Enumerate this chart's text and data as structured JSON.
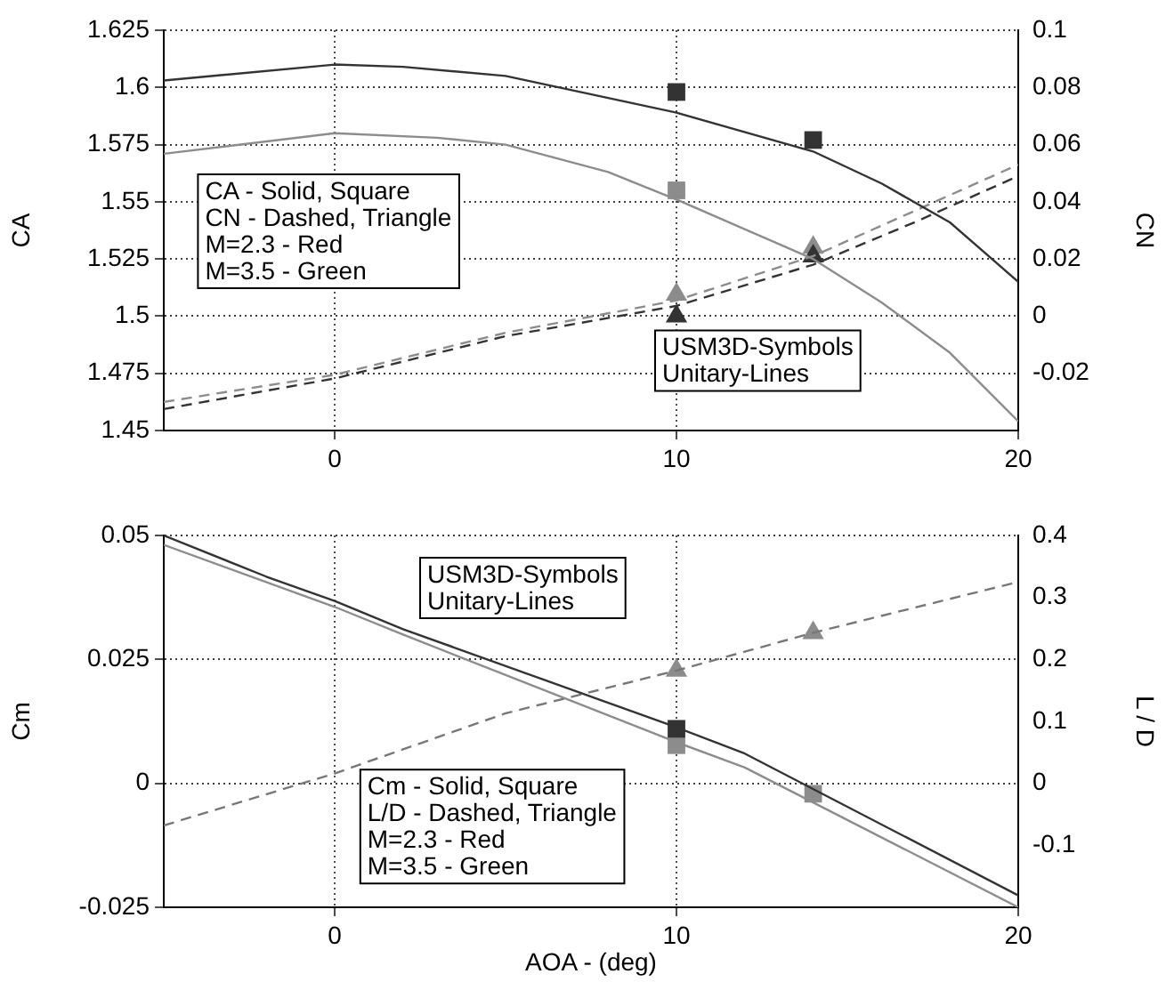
{
  "chart_data": [
    {
      "type": "line",
      "ylabel": "CA",
      "y2label": "CN",
      "xlim": [
        -5,
        20
      ],
      "xticks": [
        0,
        10,
        20
      ],
      "ylim": [
        1.45,
        1.625
      ],
      "yticks": [
        1.45,
        1.475,
        1.5,
        1.525,
        1.55,
        1.575,
        1.6,
        1.625
      ],
      "y2lim": [
        -0.04,
        0.1
      ],
      "y2ticks": [
        -0.02,
        0,
        0.02,
        0.04,
        0.06,
        0.08,
        0.1
      ],
      "grid": true,
      "annotations": [
        "CA - Solid, Square",
        "CN - Dashed, Triangle",
        "M=2.3 - Red",
        "M=3.5 - Green",
        "USM3D-Symbols",
        "Unitary-Lines"
      ],
      "series": [
        {
          "type": "line",
          "color": "#333333",
          "line_style": "solid",
          "marker": "none",
          "x": [
            -5,
            0,
            2,
            5,
            10,
            14,
            16,
            18,
            20
          ],
          "values": [
            1.603,
            1.61,
            1.609,
            1.605,
            1.589,
            1.572,
            1.558,
            1.541,
            1.515
          ]
        },
        {
          "type": "line",
          "color": "#8c8c8c",
          "line_style": "solid",
          "marker": "none",
          "x": [
            -5,
            0,
            3,
            5,
            8,
            10,
            14,
            16,
            18,
            20
          ],
          "values": [
            1.571,
            1.58,
            1.578,
            1.575,
            1.563,
            1.551,
            1.525,
            1.506,
            1.484,
            1.454
          ]
        },
        {
          "type": "line",
          "axis": "y2",
          "color": "#333333",
          "line_style": "dashed",
          "marker": "none",
          "x": [
            -5,
            0,
            5,
            10,
            14,
            17,
            20
          ],
          "values": [
            -0.0325,
            -0.0218,
            -0.007,
            0.0036,
            0.018,
            0.033,
            0.049
          ]
        },
        {
          "type": "line",
          "axis": "y2",
          "color": "#8c8c8c",
          "line_style": "dashed",
          "marker": "none",
          "x": [
            -5,
            0,
            5,
            10,
            14,
            17,
            20
          ],
          "values": [
            -0.03,
            -0.0205,
            -0.0058,
            0.0055,
            0.021,
            0.037,
            0.053
          ]
        },
        {
          "type": "scatter",
          "color": "#333333",
          "marker": "square",
          "x": [
            10,
            14
          ],
          "values": [
            1.598,
            1.577
          ]
        },
        {
          "type": "scatter",
          "color": "#8c8c8c",
          "marker": "square",
          "x": [
            10
          ],
          "values": [
            1.555
          ]
        },
        {
          "type": "scatter",
          "axis": "y2",
          "color": "#333333",
          "marker": "triangle",
          "x": [
            10,
            14
          ],
          "values": [
            0.0,
            0.021
          ]
        },
        {
          "type": "scatter",
          "axis": "y2",
          "color": "#8c8c8c",
          "marker": "triangle",
          "x": [
            10,
            14
          ],
          "values": [
            0.0076,
            0.024
          ]
        }
      ]
    },
    {
      "type": "line",
      "xlabel": "AOA - (deg)",
      "ylabel": "Cm",
      "y2label": "L / D",
      "xlim": [
        -5,
        20
      ],
      "xticks": [
        0,
        10,
        20
      ],
      "ylim": [
        -0.025,
        0.05
      ],
      "yticks": [
        -0.025,
        0,
        0.025,
        0.05
      ],
      "y2lim": [
        -0.2,
        0.4
      ],
      "y2ticks": [
        -0.1,
        0,
        0.1,
        0.2,
        0.3,
        0.4
      ],
      "grid": true,
      "annotations": [
        "USM3D-Symbols",
        "Unitary-Lines",
        "Cm - Solid, Square",
        "L/D - Dashed, Triangle",
        "M=2.3 - Red",
        "M=3.5 - Green"
      ],
      "series": [
        {
          "type": "line",
          "color": "#333333",
          "line_style": "solid",
          "marker": "none",
          "x": [
            -5,
            -2,
            0,
            2,
            10,
            12,
            20
          ],
          "values": [
            0.05,
            0.0417,
            0.0368,
            0.0311,
            0.0113,
            0.006,
            -0.0226
          ]
        },
        {
          "type": "line",
          "color": "#8c8c8c",
          "line_style": "solid",
          "marker": "none",
          "x": [
            -5,
            0,
            2,
            10,
            12,
            20
          ],
          "values": [
            0.0481,
            0.0356,
            0.03,
            0.0083,
            0.0032,
            -0.025
          ]
        },
        {
          "type": "line",
          "axis": "y2",
          "color": "#777777",
          "line_style": "dashed",
          "marker": "none",
          "x": [
            -5,
            0,
            5,
            10,
            14,
            20
          ],
          "values": [
            -0.068,
            0.016,
            0.113,
            0.182,
            0.243,
            0.325
          ]
        },
        {
          "type": "scatter",
          "color": "#333333",
          "marker": "square",
          "x": [
            10
          ],
          "values": [
            0.011
          ]
        },
        {
          "type": "scatter",
          "color": "#8c8c8c",
          "marker": "square",
          "x": [
            10,
            14
          ],
          "values": [
            0.0077,
            -0.0021
          ]
        },
        {
          "type": "scatter",
          "axis": "y2",
          "color": "#8c8c8c",
          "marker": "triangle",
          "x": [
            10,
            14
          ],
          "values": [
            0.182,
            0.243
          ]
        }
      ]
    }
  ]
}
